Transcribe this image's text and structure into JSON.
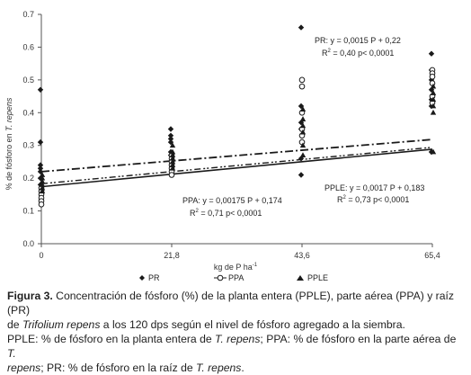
{
  "chart_data": {
    "type": "scatter",
    "xlabel": "kg de P ha",
    "xlabel_sup": "-1",
    "ylabel_prefix": "% de fósforo en ",
    "ylabel_italic": "T. repens",
    "x_ticks": [
      0,
      21.8,
      43.6,
      65.4
    ],
    "x_tick_labels": [
      "0",
      "21,8",
      "43,6",
      "65,4"
    ],
    "y_ticks": [
      0,
      0.1,
      0.2,
      0.3,
      0.4,
      0.5,
      0.6,
      0.7
    ],
    "y_tick_labels": [
      "0.0",
      "0.1",
      "0.2",
      "0.3",
      "0.4",
      "0.5",
      "0.6",
      "0.7"
    ],
    "xlim": [
      0,
      65.4
    ],
    "ylim": [
      0,
      0.7
    ],
    "grid": false,
    "legend_position": "bottom",
    "series": [
      {
        "name": "PR",
        "marker": "diamond",
        "color": "#1a1a1a",
        "line_style": "dashdot",
        "regression": {
          "slope": 0.0015,
          "intercept": 0.22
        },
        "equation_label": "PR: y = 0,0015 P + 0,22",
        "r2_label": "R",
        "r2_text": " = 0,40 p< 0,0001",
        "points": [
          [
            0,
            0.47
          ],
          [
            0,
            0.31
          ],
          [
            0,
            0.24
          ],
          [
            0,
            0.23
          ],
          [
            0,
            0.22
          ],
          [
            0,
            0.2
          ],
          [
            0,
            0.18
          ],
          [
            21.8,
            0.35
          ],
          [
            21.8,
            0.33
          ],
          [
            21.8,
            0.32
          ],
          [
            21.8,
            0.31
          ],
          [
            21.8,
            0.28
          ],
          [
            21.8,
            0.27
          ],
          [
            43.6,
            0.66
          ],
          [
            43.6,
            0.42
          ],
          [
            43.6,
            0.37
          ],
          [
            43.6,
            0.35
          ],
          [
            43.6,
            0.26
          ],
          [
            43.6,
            0.21
          ],
          [
            65.4,
            0.58
          ],
          [
            65.4,
            0.53
          ],
          [
            65.4,
            0.5
          ],
          [
            65.4,
            0.47
          ],
          [
            65.4,
            0.44
          ],
          [
            65.4,
            0.42
          ],
          [
            65.4,
            0.28
          ]
        ]
      },
      {
        "name": "PPA",
        "marker": "circle",
        "color": "#1a1a1a",
        "line_style": "solid",
        "regression": {
          "slope": 0.00175,
          "intercept": 0.174
        },
        "equation_label": "PPA: y = 0,00175 P + 0,174",
        "r2_label": "R",
        "r2_text": " = 0,71 p< 0,0001",
        "points": [
          [
            0,
            0.17
          ],
          [
            0,
            0.16
          ],
          [
            0,
            0.15
          ],
          [
            0,
            0.14
          ],
          [
            0,
            0.13
          ],
          [
            0,
            0.12
          ],
          [
            21.8,
            0.27
          ],
          [
            21.8,
            0.26
          ],
          [
            21.8,
            0.25
          ],
          [
            21.8,
            0.24
          ],
          [
            21.8,
            0.23
          ],
          [
            21.8,
            0.22
          ],
          [
            21.8,
            0.21
          ],
          [
            43.6,
            0.5
          ],
          [
            43.6,
            0.48
          ],
          [
            43.6,
            0.4
          ],
          [
            43.6,
            0.35
          ],
          [
            43.6,
            0.33
          ],
          [
            43.6,
            0.31
          ],
          [
            65.4,
            0.53
          ],
          [
            65.4,
            0.52
          ],
          [
            65.4,
            0.51
          ],
          [
            65.4,
            0.49
          ],
          [
            65.4,
            0.45
          ],
          [
            65.4,
            0.43
          ]
        ]
      },
      {
        "name": "PPLE",
        "marker": "triangle",
        "color": "#1a1a1a",
        "line_style": "dashdotdot",
        "regression": {
          "slope": 0.0017,
          "intercept": 0.183
        },
        "equation_label": "PPLE: y = 0,0017 P + 0,183",
        "r2_label": "R",
        "r2_text": " = 0,73 p< 0,0001",
        "points": [
          [
            0,
            0.21
          ],
          [
            0,
            0.2
          ],
          [
            0,
            0.19
          ],
          [
            0,
            0.18
          ],
          [
            0,
            0.17
          ],
          [
            0,
            0.16
          ],
          [
            21.8,
            0.3
          ],
          [
            21.8,
            0.28
          ],
          [
            21.8,
            0.27
          ],
          [
            21.8,
            0.26
          ],
          [
            21.8,
            0.25
          ],
          [
            21.8,
            0.24
          ],
          [
            21.8,
            0.23
          ],
          [
            43.6,
            0.41
          ],
          [
            43.6,
            0.38
          ],
          [
            43.6,
            0.36
          ],
          [
            43.6,
            0.34
          ],
          [
            43.6,
            0.3
          ],
          [
            43.6,
            0.27
          ],
          [
            65.4,
            0.48
          ],
          [
            65.4,
            0.46
          ],
          [
            65.4,
            0.44
          ],
          [
            65.4,
            0.42
          ],
          [
            65.4,
            0.4
          ],
          [
            65.4,
            0.28
          ]
        ]
      }
    ]
  },
  "caption": {
    "label": "Figura 3.",
    "line1_rest": " Concentración de fósforo (%) de la planta entera (PPLE), parte aérea (PPA) y raíz (PR)",
    "line2_pre": "de ",
    "line2_italic": "Trifolium repens",
    "line2_post": " a los 120 dps según el nivel de fósforo agregado a la siembra.",
    "line3_a": "PPLE: % de fósforo en la planta entera de ",
    "line3_b_italic": "T. repens",
    "line3_c": "; PPA: % de fósforo en la parte aérea de ",
    "line3_d_italic": "T.",
    "line4_a_italic": "repens",
    "line4_b": "; PR: % de fósforo en la raíz de ",
    "line4_c_italic": "T. repens",
    "line4_d": "."
  }
}
